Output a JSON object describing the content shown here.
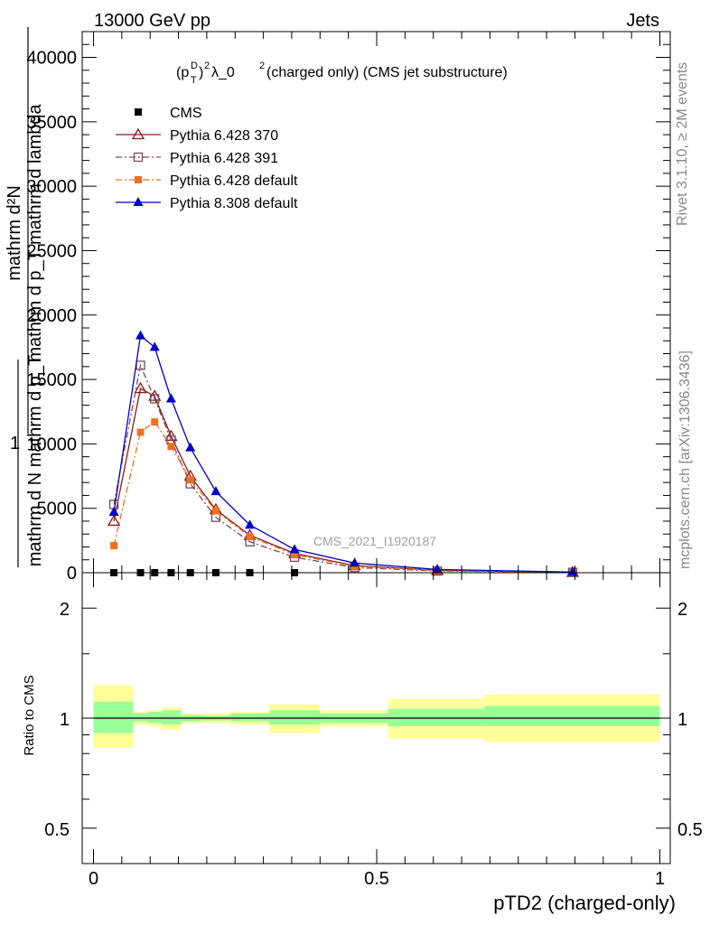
{
  "header": {
    "left": "13000 GeV pp",
    "right": "Jets"
  },
  "side_labels": {
    "top": "Rivet 3.1.10, ≥ 2M events",
    "bottom": "mcplots.cern.ch [arXiv:1306.3436]"
  },
  "watermark": "CMS_2021_I1920187",
  "chart_data": [
    {
      "type": "line",
      "panel": "main",
      "title": "(p_T^D)^2 λ_0^2 (charged only) (CMS jet substructure)",
      "ylabel_top": "mathrm d²N",
      "ylabel_mid": "mathrm d p_T mathrm d lambda",
      "ylabel_one": "1",
      "ylabel_bottom": "mathrm d N mathrm d p_T",
      "ylim": [
        0,
        42000
      ],
      "yticks": [
        0,
        5000,
        10000,
        15000,
        20000,
        25000,
        30000,
        35000,
        40000
      ],
      "ytick_labels": [
        "0",
        "5000",
        "10000",
        "15000",
        "20000",
        "25000",
        "30000",
        "35000",
        "40000"
      ],
      "xlim": [
        -0.02,
        1.0
      ],
      "legend_position": "top-left",
      "series": [
        {
          "name": "CMS",
          "color": "#000000",
          "marker": "filled-square",
          "line": "none",
          "x": [
            0.036,
            0.083,
            0.108,
            0.137,
            0.171,
            0.216,
            0.276,
            0.355
          ],
          "y": [
            0,
            0,
            0,
            0,
            0,
            0,
            0,
            0
          ]
        },
        {
          "name": "Pythia 6.428 370",
          "color": "#8b1a1a",
          "marker": "open-triangle",
          "line": "solid",
          "x": [
            0.036,
            0.083,
            0.108,
            0.137,
            0.171,
            0.216,
            0.276,
            0.355,
            0.461,
            0.607,
            0.846
          ],
          "y": [
            4000,
            14300,
            13700,
            10600,
            7500,
            4900,
            2900,
            1500,
            550,
            180,
            30
          ]
        },
        {
          "name": "Pythia 6.428 391",
          "color": "#7a4a5a",
          "marker": "open-square",
          "line": "dash-dot",
          "x": [
            0.036,
            0.083,
            0.108,
            0.137,
            0.171,
            0.216,
            0.276,
            0.355,
            0.461,
            0.607,
            0.846
          ],
          "y": [
            5300,
            16100,
            13500,
            10300,
            6900,
            4300,
            2400,
            1200,
            400,
            130,
            30
          ]
        },
        {
          "name": "Pythia 6.428 default",
          "color": "#f07020",
          "marker": "filled-square",
          "line": "dash-dot",
          "x": [
            0.036,
            0.083,
            0.108,
            0.137,
            0.171,
            0.216,
            0.276,
            0.355,
            0.461,
            0.607,
            0.846
          ],
          "y": [
            2100,
            10900,
            11700,
            9800,
            7200,
            4800,
            2800,
            1400,
            500,
            170,
            30
          ]
        },
        {
          "name": "Pythia 8.308 default",
          "color": "#0000cc",
          "marker": "filled-triangle",
          "line": "solid",
          "x": [
            0.036,
            0.083,
            0.108,
            0.137,
            0.171,
            0.216,
            0.276,
            0.355,
            0.461,
            0.607,
            0.846
          ],
          "y": [
            4700,
            18400,
            17500,
            13500,
            9700,
            6300,
            3700,
            1800,
            750,
            250,
            50
          ]
        }
      ]
    },
    {
      "type": "area",
      "panel": "ratio",
      "ylabel": "Ratio to CMS",
      "xlabel": "pTD2 (charged-only)",
      "scale": "log",
      "ylim": [
        0.4,
        2.5
      ],
      "yticks": [
        0.5,
        1,
        2
      ],
      "ytick_labels": [
        "0.5",
        "1",
        "2"
      ],
      "xticks": [
        0,
        0.5,
        1
      ],
      "xtick_labels": [
        "0",
        "0.5",
        "1"
      ],
      "reference_line": 1,
      "bands": [
        {
          "x0": 0.0,
          "x1": 0.07,
          "inner": [
            0.91,
            1.11
          ],
          "outer": [
            0.83,
            1.23
          ]
        },
        {
          "x0": 0.07,
          "x1": 0.095,
          "inner": [
            0.98,
            1.03
          ],
          "outer": [
            0.96,
            1.04
          ]
        },
        {
          "x0": 0.095,
          "x1": 0.12,
          "inner": [
            0.97,
            1.04
          ],
          "outer": [
            0.95,
            1.05
          ]
        },
        {
          "x0": 0.12,
          "x1": 0.155,
          "inner": [
            0.96,
            1.05
          ],
          "outer": [
            0.93,
            1.07
          ]
        },
        {
          "x0": 0.155,
          "x1": 0.19,
          "inner": [
            0.98,
            1.02
          ],
          "outer": [
            0.97,
            1.03
          ]
        },
        {
          "x0": 0.19,
          "x1": 0.242,
          "inner": [
            0.985,
            1.015
          ],
          "outer": [
            0.97,
            1.03
          ]
        },
        {
          "x0": 0.242,
          "x1": 0.31,
          "inner": [
            0.98,
            1.03
          ],
          "outer": [
            0.96,
            1.04
          ]
        },
        {
          "x0": 0.31,
          "x1": 0.4,
          "inner": [
            0.96,
            1.05
          ],
          "outer": [
            0.91,
            1.09
          ]
        },
        {
          "x0": 0.4,
          "x1": 0.52,
          "inner": [
            0.97,
            1.03
          ],
          "outer": [
            0.95,
            1.05
          ]
        },
        {
          "x0": 0.52,
          "x1": 0.69,
          "inner": [
            0.95,
            1.06
          ],
          "outer": [
            0.88,
            1.13
          ]
        },
        {
          "x0": 0.69,
          "x1": 1.0,
          "inner": [
            0.95,
            1.08
          ],
          "outer": [
            0.86,
            1.16
          ]
        }
      ],
      "inner_color": "#99ff99",
      "outer_color": "#ffff99"
    }
  ]
}
